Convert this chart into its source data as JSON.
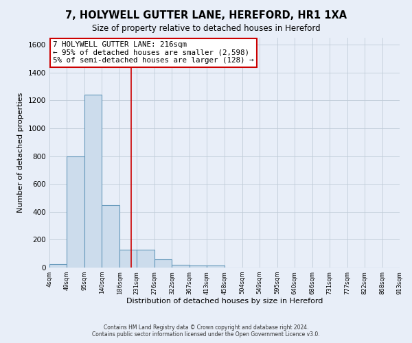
{
  "title": "7, HOLYWELL GUTTER LANE, HEREFORD, HR1 1XA",
  "subtitle": "Size of property relative to detached houses in Hereford",
  "xlabel": "Distribution of detached houses by size in Hereford",
  "ylabel": "Number of detached properties",
  "bin_edges": [
    4,
    49,
    95,
    140,
    186,
    231,
    276,
    322,
    367,
    413,
    458,
    504,
    549,
    595,
    640,
    686,
    731,
    777,
    822,
    868,
    913
  ],
  "bar_heights": [
    25,
    800,
    1240,
    450,
    130,
    130,
    60,
    20,
    15,
    15,
    0,
    0,
    0,
    0,
    0,
    0,
    0,
    0,
    0,
    0
  ],
  "bar_color": "#ccdcec",
  "bar_edge_color": "#6699bb",
  "property_size": 216,
  "vline_color": "#cc0000",
  "annotation_line1": "7 HOLYWELL GUTTER LANE: 216sqm",
  "annotation_line2": "← 95% of detached houses are smaller (2,598)",
  "annotation_line3": "5% of semi-detached houses are larger (128) →",
  "annotation_box_color": "#ffffff",
  "annotation_box_edge_color": "#cc0000",
  "ylim": [
    0,
    1650
  ],
  "yticks": [
    0,
    200,
    400,
    600,
    800,
    1000,
    1200,
    1400,
    1600
  ],
  "bg_color": "#e8eef8",
  "grid_color": "#c0ccd8",
  "footer_line1": "Contains HM Land Registry data © Crown copyright and database right 2024.",
  "footer_line2": "Contains public sector information licensed under the Open Government Licence v3.0."
}
